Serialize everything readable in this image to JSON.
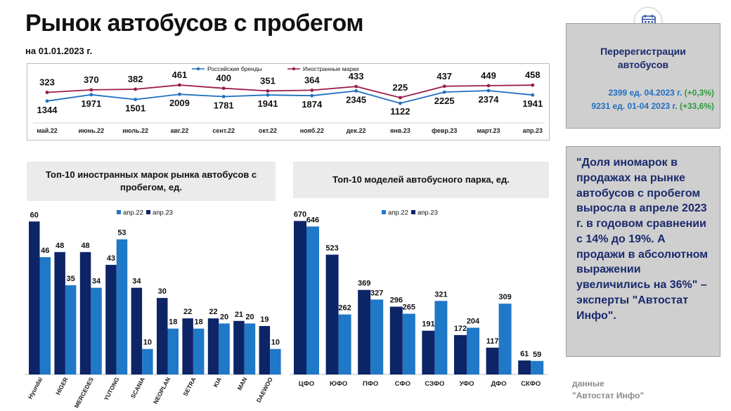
{
  "header": {
    "title": "Рынок автобусов с пробегом",
    "subtitle": "на 01.01.2023 г."
  },
  "colors": {
    "russian": "#1f6fc1",
    "foreign": "#9b1b4a",
    "apr22": "#1f78c8",
    "apr23": "#0d2466"
  },
  "chart_data": [
    {
      "type": "line",
      "title": "",
      "legend_position": "top-center",
      "categories": [
        "май.22",
        "июнь.22",
        "июль.22",
        "авг.22",
        "сент.22",
        "окт.22",
        "нояб.22",
        "дек.22",
        "янв.23",
        "февр.23",
        "март.23",
        "апр.23"
      ],
      "series": [
        {
          "name": "Российские бренды",
          "values": [
            1344,
            1971,
            1501,
            2009,
            1781,
            1941,
            1874,
            2345,
            1122,
            2225,
            2374,
            1941
          ]
        },
        {
          "name": "Иностранные марки",
          "values": [
            323,
            370,
            382,
            461,
            400,
            351,
            364,
            433,
            225,
            437,
            449,
            458
          ]
        }
      ]
    },
    {
      "type": "bar",
      "title": "Топ-10 иностранных марок рынка автобусов с пробегом, ед.",
      "legend_position": "top-right",
      "categories": [
        "Hyundai",
        "HIGER",
        "MERCEDES",
        "YUTONG",
        "SCANIA",
        "NEOPLAN",
        "SETRA",
        "KIA",
        "MAN",
        "DAEWOO"
      ],
      "series": [
        {
          "name": "апр.23",
          "values": [
            60,
            48,
            48,
            43,
            34,
            30,
            22,
            22,
            21,
            19
          ]
        },
        {
          "name": "апр.22",
          "values": [
            46,
            35,
            34,
            53,
            10,
            18,
            18,
            20,
            20,
            10
          ]
        }
      ],
      "ylim": [
        0,
        62
      ]
    },
    {
      "type": "bar",
      "title": "Топ-10 моделей автобусного парка, ед.",
      "legend_position": "top-center",
      "categories": [
        "ЦФО",
        "ЮФО",
        "ПФО",
        "СФО",
        "СЗФО",
        "УФО",
        "ДФО",
        "СКФО"
      ],
      "series": [
        {
          "name": "апр.23",
          "values": [
            670,
            523,
            369,
            296,
            191,
            172,
            117,
            61
          ]
        },
        {
          "name": "апр.22",
          "values": [
            646,
            262,
            327,
            265,
            321,
            204,
            309,
            59
          ]
        }
      ],
      "ylim": [
        0,
        690
      ]
    }
  ],
  "reregistration": {
    "title_line1": "Перерегистрации",
    "title_line2": "автобусов",
    "line1_text": "2399 ед. 04.2023 г. ",
    "line1_pct": "(+0,3%)",
    "line2_text": "9231 ед. 01-04 2023 г. ",
    "line2_pct": "(+33,6%)"
  },
  "quote": {
    "text": "\"Доля иномарок в продажах на рынке автобусов с пробегом выросла в апреле 2023 г. в годовом сравнении с 14% до 19%. А продажи в абсолютном выражении увеличились на 36%\" – эксперты \"Автостат Инфо\"."
  },
  "source": {
    "line1": "данные",
    "line2": "\"Автостат Инфо\""
  },
  "icons": {
    "calendar": "calendar-icon"
  }
}
